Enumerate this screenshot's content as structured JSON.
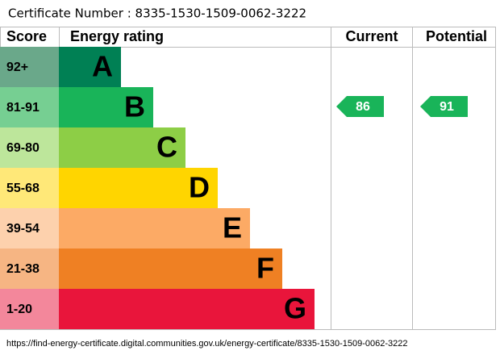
{
  "certificate": "Certificate Number : 8335-1530-1509-0062-3222",
  "headers": {
    "score": "Score",
    "rating": "Energy rating",
    "current": "Current",
    "potential": "Potential"
  },
  "bands": [
    {
      "score": "92+",
      "letter": "A",
      "color": "#008054",
      "light": "#6aa88a"
    },
    {
      "score": "81-91",
      "letter": "B",
      "color": "#19b459",
      "light": "#76cf92"
    },
    {
      "score": "69-80",
      "letter": "C",
      "color": "#8dce46",
      "light": "#bde69b"
    },
    {
      "score": "55-68",
      "letter": "D",
      "color": "#ffd500",
      "light": "#ffe878"
    },
    {
      "score": "39-54",
      "letter": "E",
      "color": "#fcaa65",
      "light": "#fdd1ad"
    },
    {
      "score": "21-38",
      "letter": "F",
      "color": "#ef8023",
      "light": "#f6b583"
    },
    {
      "score": "1-20",
      "letter": "G",
      "color": "#e9153b",
      "light": "#f3879b"
    }
  ],
  "current": 86,
  "potential": 91,
  "url": "https://find-energy-certificate.digital.communities.gov.uk/energy-certificate/8335-1530-1509-0062-3222"
}
